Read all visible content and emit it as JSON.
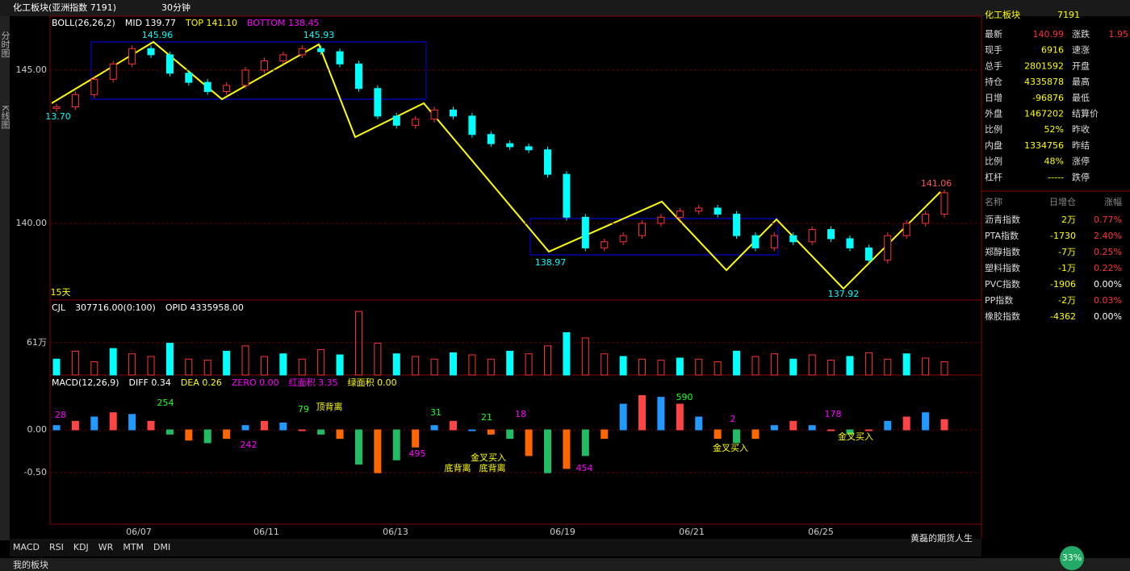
{
  "window": {
    "title": "化工板块(亚洲指数 7191)",
    "period": "30分钟"
  },
  "sidebar": [
    "分时图",
    "K线图"
  ],
  "chart_data": [
    {
      "type": "candlestick",
      "header": [
        "BOLL(26,26,2)",
        "MID 139.77",
        "TOP 141.10",
        "BOTTOM 138.45"
      ],
      "values": [
        143.8,
        144.2,
        144.7,
        145.2,
        145.7,
        145.5,
        144.9,
        144.6,
        144.3,
        144.5,
        145.0,
        145.3,
        145.5,
        145.7,
        145.6,
        145.2,
        144.4,
        143.5,
        143.2,
        143.4,
        143.7,
        143.5,
        142.9,
        142.6,
        142.5,
        142.4,
        141.6,
        140.2,
        139.2,
        139.4,
        139.6,
        140.0,
        140.2,
        140.4,
        140.5,
        140.3,
        139.6,
        139.2,
        139.6,
        139.4,
        139.8,
        139.5,
        139.2,
        138.8,
        139.6,
        140.0,
        140.3,
        141.0
      ],
      "ylim": [
        137.5,
        146.76
      ],
      "yticks": [
        {
          "value": 145,
          "label": "145.00"
        },
        {
          "value": 140,
          "label": "140.00"
        }
      ],
      "annotations": [
        "145.96",
        "145.93",
        "13.70",
        "138.97",
        "137.92",
        "141.06",
        "15天"
      ],
      "x_labels": [
        "06/07",
        "06/11",
        "06/13",
        "06/19",
        "06/21",
        "06/25"
      ]
    },
    {
      "type": "bar",
      "header": [
        "CJL",
        "307716.00(0:100)",
        "OPID 4335958.00"
      ],
      "values": [
        30,
        45,
        25,
        50,
        40,
        35,
        60,
        30,
        28,
        45,
        55,
        35,
        40,
        30,
        48,
        38,
        120,
        60,
        40,
        35,
        30,
        42,
        38,
        30,
        45,
        40,
        55,
        80,
        70,
        40,
        35,
        30,
        28,
        32,
        30,
        25,
        45,
        35,
        40,
        30,
        38,
        28,
        35,
        42,
        30,
        40,
        32,
        25
      ],
      "ylim": [
        0,
        140
      ],
      "yticks": [
        {
          "value": 61,
          "label": "61万"
        }
      ]
    },
    {
      "type": "bar",
      "header": [
        "MACD(12,26,9)",
        "DIFF 0.34",
        "DEA 0.26",
        "ZERO 0.00",
        "红面积 3.35",
        "绿面积 0.00"
      ],
      "values": [
        0.05,
        0.1,
        0.15,
        0.2,
        0.18,
        0.1,
        -0.05,
        -0.12,
        -0.15,
        -0.1,
        0.05,
        0.1,
        0.08,
        0.0,
        -0.05,
        -0.1,
        -0.4,
        -0.5,
        -0.35,
        -0.2,
        0.05,
        0.1,
        0.0,
        -0.05,
        -0.1,
        -0.3,
        -0.5,
        -0.45,
        -0.3,
        -0.1,
        0.3,
        0.4,
        0.38,
        0.3,
        0.15,
        -0.1,
        -0.15,
        -0.1,
        0.05,
        0.1,
        0.05,
        0.0,
        -0.05,
        0.0,
        0.1,
        0.15,
        0.2,
        0.12
      ],
      "ylim": [
        -1.1,
        0.63
      ],
      "yticks": [
        {
          "value": 0,
          "label": "0.00"
        },
        {
          "value": -0.5,
          "label": "-0.50"
        }
      ],
      "annotations": [
        "28",
        "254",
        "242",
        "79",
        "顶背离",
        "31",
        "495",
        "21",
        "18",
        "金叉买入",
        "底背离",
        "底背离",
        "454",
        "590",
        "2",
        "金叉买入",
        "178",
        "金叉买入"
      ]
    }
  ],
  "quote": {
    "name": "化工板块",
    "code": "7191",
    "rows": [
      {
        "k": "最新",
        "v": "140.99",
        "k2": "涨跌",
        "v2": "1.95"
      },
      {
        "k": "现手",
        "v": "6916",
        "k2": "速涨"
      },
      {
        "k": "总手",
        "v": "2801592",
        "k2": "开盘"
      },
      {
        "k": "持仓",
        "v": "4335878",
        "k2": "最高"
      },
      {
        "k": "日增",
        "v": "-96876",
        "k2": "最低"
      },
      {
        "k": "外盘",
        "v": "1467202",
        "k2": "结算价"
      },
      {
        "k": "比例",
        "v": "52%",
        "k2": "昨收"
      },
      {
        "k": "内盘",
        "v": "1334756",
        "k2": "昨结"
      },
      {
        "k": "比例",
        "v": "48%",
        "k2": "涨停"
      },
      {
        "k": "杠杆",
        "v": "-----",
        "k2": "跌停"
      }
    ]
  },
  "list": {
    "header": [
      "名称",
      "日增仓",
      "涨幅"
    ],
    "rows": [
      [
        "沥青指数",
        "2万",
        "0.77%"
      ],
      [
        "PTA指数",
        "-1730",
        "2.40%"
      ],
      [
        "郑醇指数",
        "-7万",
        "0.25%"
      ],
      [
        "塑料指数",
        "-1万",
        "0.22%"
      ],
      [
        "PVC指数",
        "-1906",
        "0.00%"
      ],
      [
        "PP指数",
        "-2万",
        "0.03%"
      ],
      [
        "橡胶指数",
        "-4362",
        "0.00%"
      ]
    ]
  },
  "tabs": [
    "MACD",
    "RSI",
    "KDJ",
    "WR",
    "MTM",
    "DMI"
  ],
  "footer": {
    "tab": "我的板块",
    "badge": "33%",
    "watermark": "黄磊的期货人生"
  }
}
